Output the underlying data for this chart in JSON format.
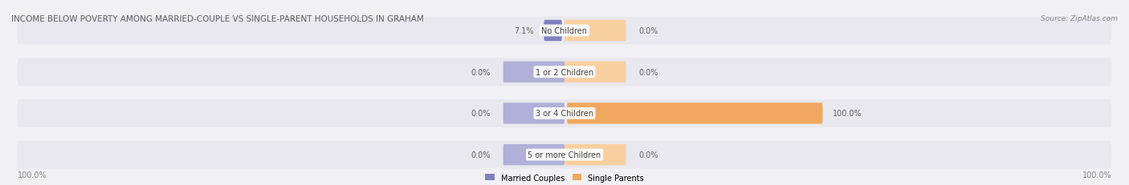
{
  "title": "INCOME BELOW POVERTY AMONG MARRIED-COUPLE VS SINGLE-PARENT HOUSEHOLDS IN GRAHAM",
  "source": "Source: ZipAtlas.com",
  "categories": [
    "No Children",
    "1 or 2 Children",
    "3 or 4 Children",
    "5 or more Children"
  ],
  "married_values": [
    7.1,
    0.0,
    0.0,
    0.0
  ],
  "single_values": [
    0.0,
    0.0,
    100.0,
    0.0
  ],
  "married_color": "#8080c0",
  "married_color_light": "#b0b0d8",
  "single_color": "#f0a860",
  "single_color_light": "#f8d0a0",
  "bg_color": "#f0f0f5",
  "bar_bg_color": "#e8e8ee",
  "title_color": "#606060",
  "label_color": "#606060",
  "legend_married": "Married Couples",
  "legend_single": "Single Parents",
  "max_value": 100.0,
  "left_axis_label": "100.0%",
  "right_axis_label": "100.0%"
}
